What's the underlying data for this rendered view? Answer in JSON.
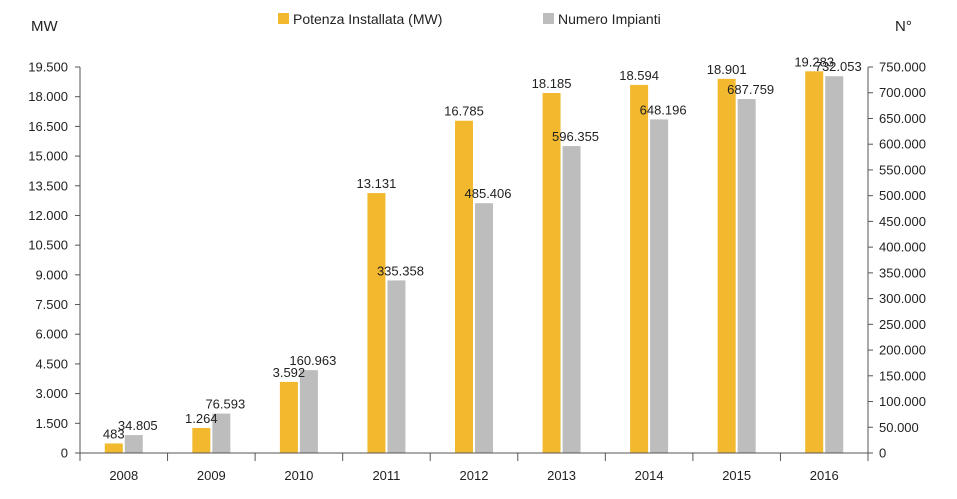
{
  "chart_data": {
    "type": "bar",
    "title": "",
    "categories": [
      "2008",
      "2009",
      "2010",
      "2011",
      "2012",
      "2013",
      "2014",
      "2015",
      "2016"
    ],
    "series": [
      {
        "name": "Potenza Installata (MW)",
        "axis": "left",
        "color": "#F2B82E",
        "values": [
          483,
          1264,
          3592,
          13131,
          16785,
          18185,
          18594,
          18901,
          19283
        ],
        "labels": [
          "483",
          "1.264",
          "3.592",
          "13.131",
          "16.785",
          "18.185",
          "18.594",
          "18.901",
          "19.283"
        ]
      },
      {
        "name": "Numero Impianti",
        "axis": "right",
        "color": "#BDBDBD",
        "values": [
          34805,
          76593,
          160963,
          335358,
          485406,
          596355,
          648196,
          687759,
          732053
        ],
        "labels": [
          "34.805",
          "76.593",
          "160.963",
          "335.358",
          "485.406",
          "596.355",
          "648.196",
          "687.759",
          "732.053"
        ]
      }
    ],
    "y_left": {
      "label": "MW",
      "ylim": [
        0,
        19500
      ],
      "ticks": [
        "0",
        "1.500",
        "3.000",
        "4.500",
        "6.000",
        "7.500",
        "9.000",
        "10.500",
        "12.000",
        "13.500",
        "15.000",
        "16.500",
        "18.000",
        "19.500"
      ]
    },
    "y_right": {
      "label": "N°",
      "ylim": [
        0,
        750000
      ],
      "ticks": [
        "0",
        "50.000",
        "100.000",
        "150.000",
        "200.000",
        "250.000",
        "300.000",
        "350.000",
        "400.000",
        "450.000",
        "500.000",
        "550.000",
        "600.000",
        "650.000",
        "700.000",
        "750.000"
      ]
    },
    "grid": false,
    "legend_position": "top-center"
  }
}
